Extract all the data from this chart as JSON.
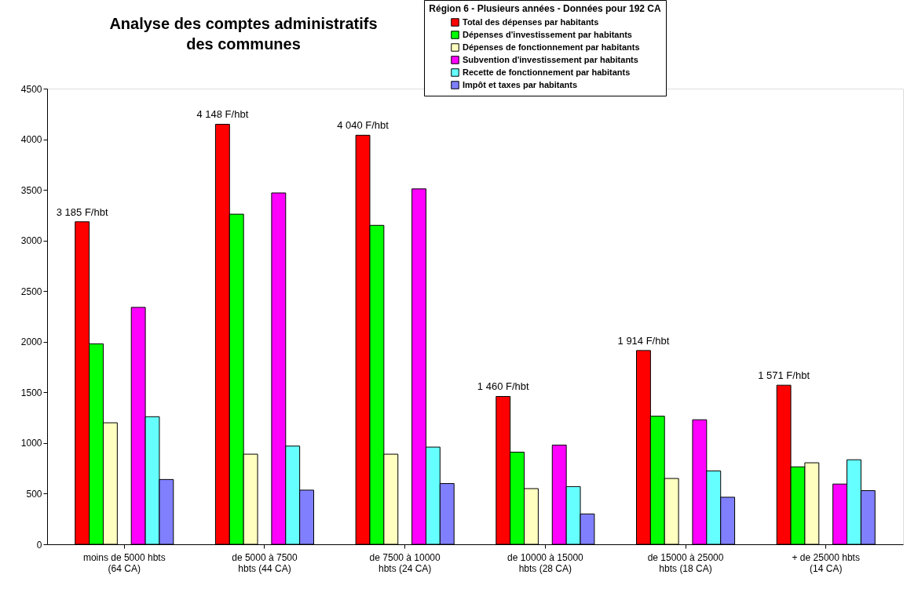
{
  "chart_data": {
    "type": "bar",
    "title": "Analyse des comptes administratifs\ndes communes",
    "legend_title": "Région 6 - Plusieurs années - Données pour 192 CA",
    "categories": [
      "moins de 5000 hbts\n(64 CA)",
      "de 5000 à 7500\nhbts (44 CA)",
      "de 7500 à 10000\nhbts (24 CA)",
      "de 10000 à 15000\nhbts (28 CA)",
      "de 15000 à 25000\nhbts (18 CA)",
      "+ de 25000 hbts\n(14 CA)"
    ],
    "series": [
      {
        "name": "Total des dépenses par habitants",
        "color": "#ff0000",
        "values": [
          3185,
          4148,
          4040,
          1460,
          1914,
          1571
        ],
        "value_labels": [
          "3 185 F/hbt",
          "4 148 F/hbt",
          "4 040 F/hbt",
          "1 460 F/hbt",
          "1 914 F/hbt",
          "1 571 F/hbt"
        ]
      },
      {
        "name": "Dépenses d'investissement par habitants",
        "color": "#00ff00",
        "values": [
          1980,
          3260,
          3150,
          910,
          1265,
          765
        ]
      },
      {
        "name": "Dépenses de fonctionnement par habitants",
        "color": "#ffffc0",
        "values": [
          1200,
          890,
          890,
          550,
          650,
          805
        ]
      },
      {
        "name": "Subvention d'investissement par habitants",
        "color": "#ff00ff",
        "values": [
          2340,
          3470,
          3510,
          980,
          1230,
          595
        ]
      },
      {
        "name": "Recette de fonctionnement par habitants",
        "color": "#66ffff",
        "values": [
          1260,
          970,
          960,
          570,
          725,
          835
        ]
      },
      {
        "name": "Impôt et taxes par habitants",
        "color": "#8080ff",
        "values": [
          640,
          535,
          600,
          300,
          465,
          530
        ]
      }
    ],
    "ylim": [
      0,
      4500
    ],
    "yticks": [
      0,
      500,
      1000,
      1500,
      2000,
      2500,
      3000,
      3500,
      4000,
      4500
    ],
    "grid": false,
    "legend": "top right"
  }
}
